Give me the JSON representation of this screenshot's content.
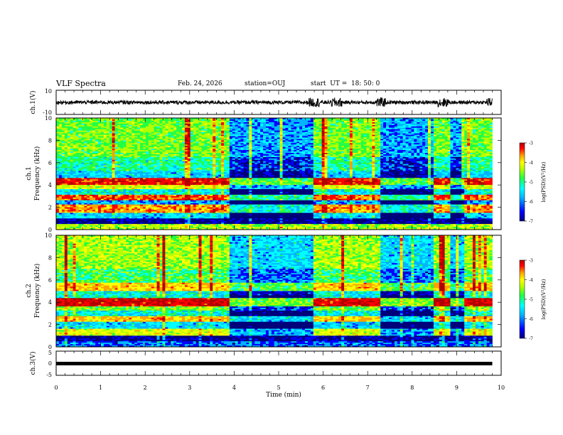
{
  "header": {
    "title": "VLF Spectra",
    "date": "Feb. 24, 2026",
    "station": "station=OUJ",
    "start": "start  UT =  18: 50: 0"
  },
  "colors": {
    "colormap": [
      "#00007a",
      "#0000ff",
      "#00b4ff",
      "#00ffff",
      "#22ff44",
      "#b4ff00",
      "#ffff00",
      "#ffa000",
      "#ff0000",
      "#b00000"
    ],
    "waveform": "#000000"
  },
  "chart_data": [
    {
      "id": "ch1-waveform",
      "type": "line",
      "ylabel": "ch.1(V)",
      "ylim": [
        -10,
        10
      ],
      "yticks": [
        "10",
        "-10"
      ],
      "xlim": [
        0,
        10
      ],
      "description_values": {
        "baseline": 0,
        "typical_amplitude": 1.5,
        "bursts_min": [
          5.8,
          6.3,
          7.3,
          8.7,
          9.8
        ]
      }
    },
    {
      "id": "ch1-spectrogram",
      "type": "heatmap",
      "ylabel": "ch.1\nFrequency (kHz)",
      "ylabel_line1": "ch.1",
      "ylabel_line2": "Frequency (kHz)",
      "ylim": [
        0,
        10
      ],
      "yticks": [
        "0",
        "2",
        "4",
        "6",
        "8",
        "10"
      ],
      "xlim": [
        0,
        10
      ],
      "bands_khz": [
        {
          "f0": 0.0,
          "f1": 0.5,
          "level": 0.55
        },
        {
          "f0": 0.5,
          "f1": 1.0,
          "level": 0.05
        },
        {
          "f0": 1.0,
          "f1": 1.5,
          "level": 0.3
        },
        {
          "f0": 1.5,
          "f1": 2.2,
          "level": 0.7
        },
        {
          "f0": 2.2,
          "f1": 2.6,
          "level": 0.25
        },
        {
          "f0": 2.6,
          "f1": 3.1,
          "level": 0.75
        },
        {
          "f0": 3.1,
          "f1": 3.6,
          "level": 0.35
        },
        {
          "f0": 3.6,
          "f1": 4.0,
          "level": 0.6
        },
        {
          "f0": 4.0,
          "f1": 4.6,
          "level": 0.82
        },
        {
          "f0": 4.6,
          "f1": 5.2,
          "level": 0.3
        },
        {
          "f0": 5.2,
          "f1": 6.5,
          "level": 0.4
        },
        {
          "f0": 6.5,
          "f1": 10.0,
          "level": 0.5
        }
      ],
      "quiet_intervals_min": [
        [
          3.9,
          5.75
        ],
        [
          7.3,
          8.45
        ],
        [
          8.85,
          9.2
        ]
      ],
      "colorbar": {
        "label": "log(PSD)(V²/Hz)",
        "ticks": [
          "-3",
          "-4",
          "-5",
          "-6",
          "-7"
        ],
        "range": [
          -7,
          -3
        ]
      }
    },
    {
      "id": "ch2-spectrogram",
      "type": "heatmap",
      "ylabel": "ch.2\nFrequency (kHz)",
      "ylabel_line1": "ch.2",
      "ylabel_line2": "Frequency (kHz)",
      "ylim": [
        0,
        10
      ],
      "yticks": [
        "0",
        "2",
        "4",
        "6",
        "8",
        "10"
      ],
      "xlim": [
        0,
        10
      ],
      "bands_khz": [
        {
          "f0": 0.0,
          "f1": 0.5,
          "level": 0.2
        },
        {
          "f0": 0.5,
          "f1": 1.0,
          "level": 0.05
        },
        {
          "f0": 1.0,
          "f1": 1.6,
          "level": 0.6
        },
        {
          "f0": 1.6,
          "f1": 2.2,
          "level": 0.3
        },
        {
          "f0": 2.2,
          "f1": 2.8,
          "level": 0.65
        },
        {
          "f0": 2.8,
          "f1": 3.3,
          "level": 0.35
        },
        {
          "f0": 3.3,
          "f1": 3.6,
          "level": 0.5
        },
        {
          "f0": 3.6,
          "f1": 4.4,
          "level": 0.85
        },
        {
          "f0": 4.4,
          "f1": 5.0,
          "level": 0.35
        },
        {
          "f0": 5.0,
          "f1": 5.7,
          "level": 0.7
        },
        {
          "f0": 5.7,
          "f1": 7.0,
          "level": 0.45
        },
        {
          "f0": 7.0,
          "f1": 10.0,
          "level": 0.55
        }
      ],
      "quiet_intervals_min": [
        [
          3.9,
          5.75
        ],
        [
          7.3,
          8.45
        ],
        [
          8.85,
          9.2
        ]
      ],
      "colorbar": {
        "label": "log(PSD)(V²/Hz)",
        "ticks": [
          "-3",
          "-4",
          "-5",
          "-6",
          "-7"
        ],
        "range": [
          -7,
          -3
        ]
      }
    },
    {
      "id": "ch3-waveform",
      "type": "line",
      "ylabel": "ch.3(V)",
      "ylim": [
        -5,
        5
      ],
      "yticks": [
        "5",
        "0",
        "-5"
      ],
      "xlim": [
        0,
        10
      ],
      "values": {
        "constant": 0
      }
    }
  ],
  "xaxis": {
    "label": "Time (min)",
    "ticks": [
      "0",
      "1",
      "2",
      "3",
      "4",
      "5",
      "6",
      "7",
      "8",
      "9",
      "10"
    ],
    "data_end_min": 9.8
  }
}
